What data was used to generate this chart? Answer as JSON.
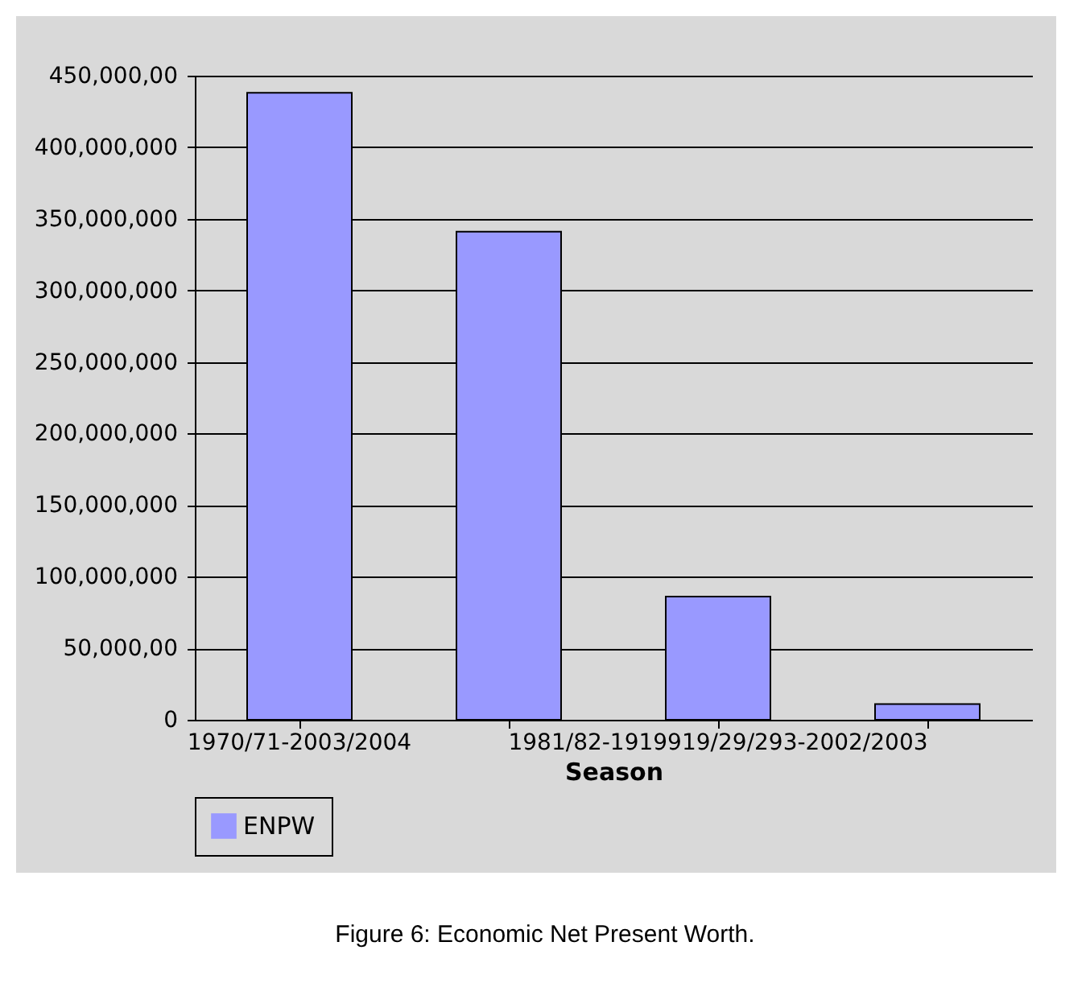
{
  "chart_data": {
    "type": "bar",
    "xlabel": "Season",
    "categories": [
      "1970/71-2003/2004",
      null,
      "1981/82-1919919/29/293-2002/2003",
      null
    ],
    "series": [
      {
        "name": "ENPW",
        "color": "#9999ff",
        "values": [
          438000000,
          341000000,
          86000000,
          11000000
        ]
      }
    ],
    "ylim": [
      0,
      450000000
    ],
    "yticks": [
      {
        "value": 0,
        "label": "0"
      },
      {
        "value": 50000000,
        "label": "50,000,00"
      },
      {
        "value": 100000000,
        "label": "100,000,000"
      },
      {
        "value": 150000000,
        "label": "150,000,000"
      },
      {
        "value": 200000000,
        "label": "200,000,000"
      },
      {
        "value": 250000000,
        "label": "250,000,000"
      },
      {
        "value": 300000000,
        "label": "300,000,000"
      },
      {
        "value": 350000000,
        "label": "350,000,000"
      },
      {
        "value": 400000000,
        "label": "400,000,000"
      },
      {
        "value": 450000000,
        "label": "450,000,00"
      }
    ],
    "grid": "y",
    "legend": "bottom",
    "annotations": [
      "Figure 6: Economic Net Present Worth."
    ]
  }
}
